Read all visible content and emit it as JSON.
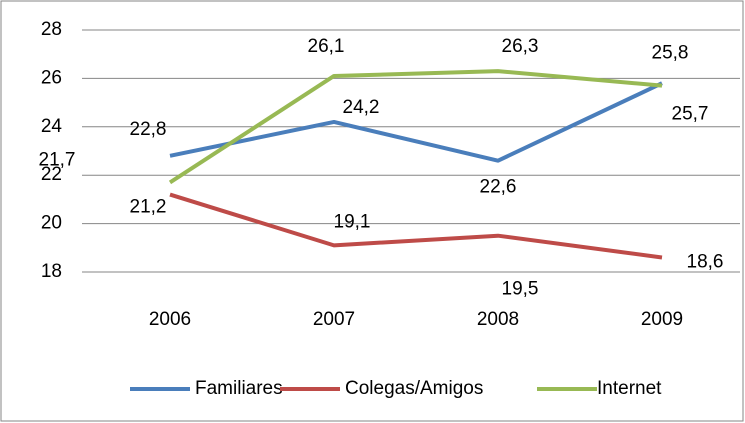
{
  "chart_data": {
    "type": "line",
    "categories": [
      "2006",
      "2007",
      "2008",
      "2009"
    ],
    "series": [
      {
        "name": "Familiares",
        "color": "#4a7ebb",
        "values": [
          22.8,
          24.2,
          22.6,
          25.8
        ],
        "value_labels": [
          "22,8",
          "24,2",
          "22,6",
          "25,8"
        ]
      },
      {
        "name": "Colegas/Amigos",
        "color": "#be4b48",
        "values": [
          21.2,
          19.1,
          19.5,
          18.6
        ],
        "value_labels": [
          "21,2",
          "19,1",
          "19,5",
          "18,6"
        ]
      },
      {
        "name": "Internet",
        "color": "#98b954",
        "values": [
          21.7,
          26.1,
          26.3,
          25.7
        ],
        "value_labels": [
          "21,7",
          "26,1",
          "26,3",
          "25,7"
        ]
      }
    ],
    "ylim": [
      18,
      28
    ],
    "yticks": [
      18,
      20,
      22,
      24,
      26,
      28
    ],
    "grid": true,
    "legend": "bottom"
  }
}
